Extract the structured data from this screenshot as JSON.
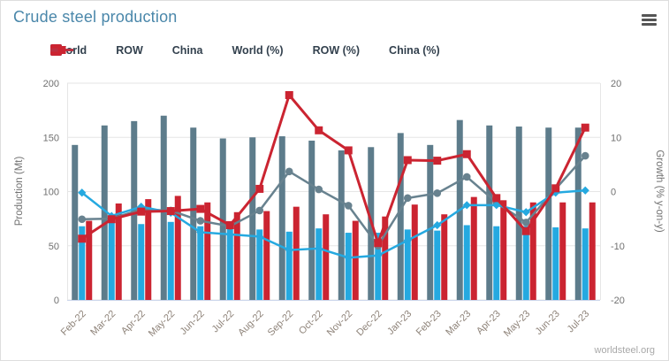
{
  "title": "Crude steel production",
  "watermark": "worldsteel.org",
  "menu": {
    "icon": "hamburger-menu"
  },
  "colors": {
    "title": "#4a87aa",
    "legend_text": "#33414e",
    "axis_tick_text": "#707070",
    "axis_title_text": "#707070",
    "x_label_text": "#8e8379",
    "gridline": "#e6e6e6",
    "axis_line": "#ccd6eb",
    "background": "#ffffff"
  },
  "chart_data": {
    "type": "bar+line combo (monthly production bars with y-on-y growth lines)",
    "categories": [
      "Feb-22",
      "Mar-22",
      "Apr-22",
      "May-22",
      "Jun-22",
      "Jul-22",
      "Aug-22",
      "Sep-22",
      "Oct-22",
      "Nov-22",
      "Dec-22",
      "Jan-23",
      "Feb-23",
      "Mar-23",
      "Apr-23",
      "May-23",
      "Jun-23",
      "Jul-23"
    ],
    "bar_series": [
      {
        "name": "World",
        "color": "#5d7c8b",
        "values": [
          143,
          161,
          165,
          170,
          159,
          149,
          150,
          151,
          147,
          138,
          141,
          154,
          143,
          166,
          161,
          160,
          159,
          159
        ]
      },
      {
        "name": "ROW",
        "color": "#25a9e0",
        "values": [
          68,
          73,
          70,
          72,
          68,
          66,
          65,
          63,
          66,
          62,
          62,
          65,
          64,
          69,
          68,
          68,
          67,
          66
        ]
      },
      {
        "name": "China",
        "color": "#cb2431",
        "values": [
          73,
          89,
          93,
          96,
          90,
          81,
          82,
          86,
          79,
          73,
          77,
          88,
          79,
          95,
          92,
          90,
          90,
          90
        ]
      }
    ],
    "line_series": [
      {
        "name": "World (%)",
        "color": "#68828f",
        "marker": "circle",
        "values": [
          -5.1,
          -5.0,
          -3.3,
          -3.5,
          -5.4,
          -6.4,
          -3.5,
          3.7,
          0.4,
          -2.6,
          -10.0,
          -1.2,
          -0.3,
          2.7,
          -2.0,
          -5.7,
          0.5,
          6.6
        ]
      },
      {
        "name": "ROW (%)",
        "color": "#25a9e0",
        "marker": "diamond",
        "values": [
          -0.2,
          -4.5,
          -2.8,
          -3.9,
          -7.5,
          -7.9,
          -8.3,
          -10.8,
          -10.5,
          -12.2,
          -11.8,
          -9.0,
          -6.2,
          -2.5,
          -2.5,
          -3.8,
          -0.2,
          0.2
        ]
      },
      {
        "name": "China (%)",
        "color": "#cb2431",
        "marker": "square",
        "values": [
          -8.7,
          -5.1,
          -3.7,
          -3.6,
          -3.2,
          -6.2,
          0.5,
          17.8,
          11.3,
          7.6,
          -9.5,
          5.8,
          5.7,
          6.9,
          -1.2,
          -7.3,
          0.6,
          11.8
        ]
      }
    ],
    "left_axis": {
      "title": "Production (Mt)",
      "ticks": [
        0,
        50,
        100,
        150,
        200
      ],
      "min": 0,
      "max": 200
    },
    "right_axis": {
      "title": "Growth (% y-on-y)",
      "ticks": [
        -20,
        -10,
        0,
        10,
        20
      ],
      "min": -20,
      "max": 20
    },
    "legend_position": "top-left",
    "grid": "horizontal only"
  }
}
